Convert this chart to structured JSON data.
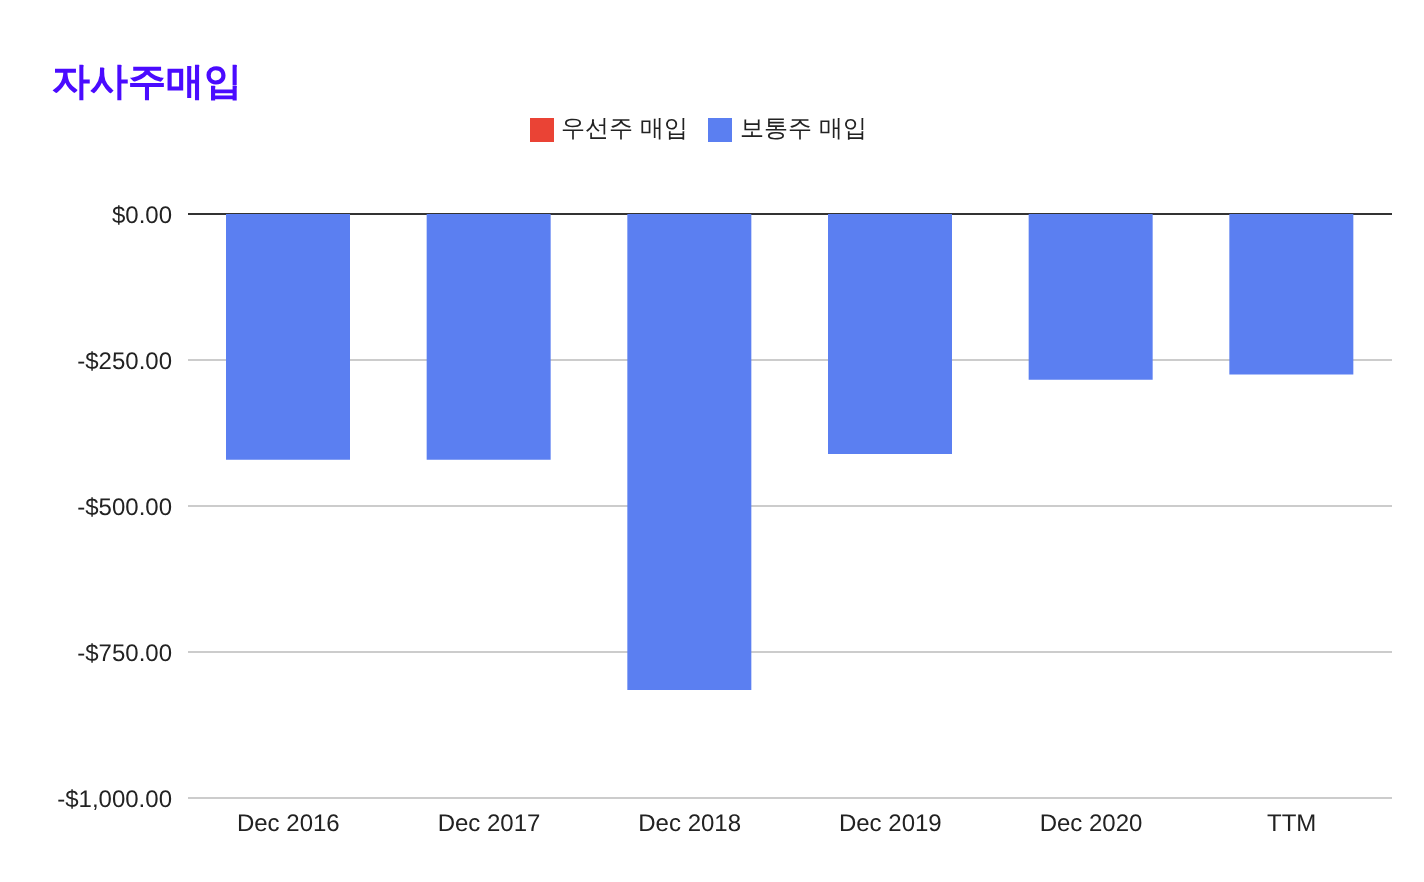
{
  "chart_data": {
    "type": "bar",
    "title": "자사주매입",
    "categories": [
      "Dec 2016",
      "Dec 2017",
      "Dec 2018",
      "Dec 2019",
      "Dec 2020",
      "TTM"
    ],
    "series": [
      {
        "name": "우선주 매입",
        "color": "#ea4335",
        "values": [
          null,
          null,
          null,
          null,
          null,
          null
        ]
      },
      {
        "name": "보통주 매입",
        "color": "#5b7ff1",
        "values": [
          -421,
          -421,
          -815,
          -411,
          -284,
          -275
        ]
      }
    ],
    "stacked": true,
    "ylim": [
      -1000,
      0
    ],
    "yticks": [
      {
        "value": -1000,
        "label": "-$1,000.00"
      },
      {
        "value": -750,
        "label": "-$750.00"
      },
      {
        "value": -500,
        "label": "-$500.00"
      },
      {
        "value": -250,
        "label": "-$250.00"
      },
      {
        "value": 0,
        "label": "$0.00"
      }
    ],
    "grid": "y",
    "legend": "top"
  }
}
